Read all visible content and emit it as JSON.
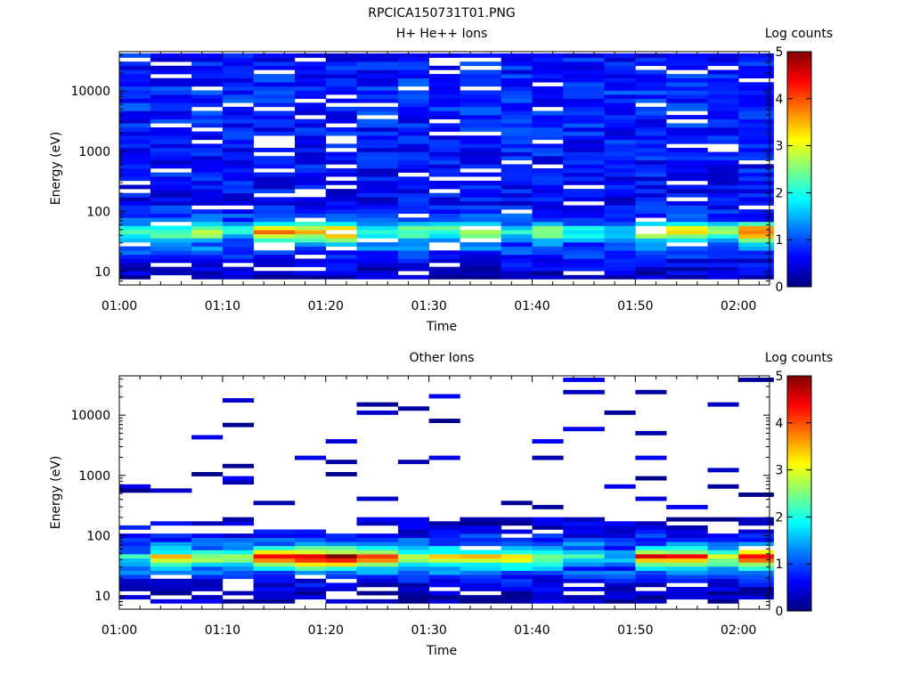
{
  "figure": {
    "title": "RPCICA150731T01.PNG"
  },
  "chart_data": [
    {
      "type": "heatmap",
      "title": "H+ He++ Ions",
      "xlabel": "Time",
      "ylabel": "Energy (eV)",
      "x_ticks": [
        "01:00",
        "01:10",
        "01:20",
        "01:30",
        "01:40",
        "01:50",
        "02:00"
      ],
      "x_range": [
        "01:00",
        "02:03"
      ],
      "y_scale": "log",
      "y_ticks": [
        "10",
        "100",
        "1000",
        "10000"
      ],
      "y_range": [
        6,
        45000
      ],
      "grid": false,
      "colorbar": {
        "label": "Log counts",
        "range": [
          0,
          5
        ],
        "ticks": [
          "0",
          "1",
          "2",
          "3",
          "4",
          "5"
        ]
      },
      "time_columns": [
        "01:00",
        "01:03",
        "01:07",
        "01:10",
        "01:13",
        "01:17",
        "01:20",
        "01:23",
        "01:27",
        "01:30",
        "01:33",
        "01:37",
        "01:40",
        "01:43",
        "01:47",
        "01:50",
        "01:53",
        "01:57",
        "02:00"
      ],
      "energy_profile": [
        {
          "energy": 8,
          "log_counts": 0.3
        },
        {
          "energy": 10,
          "log_counts": 0.4
        },
        {
          "energy": 15,
          "log_counts": 0.6
        },
        {
          "energy": 22,
          "log_counts": 0.9
        },
        {
          "energy": 32,
          "log_counts": 1.8
        },
        {
          "energy": 38,
          "log_counts": 2.8
        },
        {
          "energy": 45,
          "log_counts": 3.3
        },
        {
          "energy": 55,
          "log_counts": 3.0
        },
        {
          "energy": 70,
          "log_counts": 1.0
        },
        {
          "energy": 150,
          "log_counts": 0.6
        },
        {
          "energy": 1000,
          "log_counts": 0.7
        },
        {
          "energy": 10000,
          "log_counts": 0.8
        },
        {
          "energy": 40000,
          "log_counts": 0.7
        }
      ],
      "column_peak_log_counts": [
        2.0,
        2.3,
        2.6,
        1.8,
        3.6,
        3.3,
        3.7,
        2.0,
        2.4,
        2.3,
        2.7,
        2.0,
        2.7,
        2.0,
        1.6,
        2.8,
        3.2,
        2.6,
        3.8
      ]
    },
    {
      "type": "heatmap",
      "title": "Other Ions",
      "xlabel": "Time",
      "ylabel": "Energy (eV)",
      "x_ticks": [
        "01:00",
        "01:10",
        "01:20",
        "01:30",
        "01:40",
        "01:50",
        "02:00"
      ],
      "x_range": [
        "01:00",
        "02:03"
      ],
      "y_scale": "log",
      "y_ticks": [
        "10",
        "100",
        "1000",
        "10000"
      ],
      "y_range": [
        6,
        45000
      ],
      "grid": false,
      "colorbar": {
        "label": "Log counts",
        "range": [
          0,
          5
        ],
        "ticks": [
          "0",
          "1",
          "2",
          "3",
          "4",
          "5"
        ]
      },
      "time_columns": [
        "01:00",
        "01:03",
        "01:07",
        "01:10",
        "01:13",
        "01:17",
        "01:20",
        "01:23",
        "01:27",
        "01:30",
        "01:33",
        "01:37",
        "01:40",
        "01:43",
        "01:47",
        "01:50",
        "01:53",
        "01:57",
        "02:00"
      ],
      "energy_profile": [
        {
          "energy": 8,
          "log_counts": 0.3
        },
        {
          "energy": 13,
          "log_counts": 0.4
        },
        {
          "energy": 20,
          "log_counts": 0.7
        },
        {
          "energy": 28,
          "log_counts": 1.6
        },
        {
          "energy": 33,
          "log_counts": 2.2
        },
        {
          "energy": 38,
          "log_counts": 2.9
        },
        {
          "energy": 45,
          "log_counts": 3.6
        },
        {
          "energy": 55,
          "log_counts": 2.0
        },
        {
          "energy": 70,
          "log_counts": 1.2
        },
        {
          "energy": 110,
          "log_counts": 0.6
        },
        {
          "energy": 180,
          "log_counts": 0.3
        }
      ],
      "column_peak_log_counts": [
        1.8,
        3.0,
        2.6,
        2.4,
        4.2,
        4.4,
        4.4,
        3.8,
        2.6,
        3.2,
        3.0,
        3.2,
        2.6,
        2.0,
        1.6,
        4.0,
        3.8,
        3.0,
        4.3
      ]
    }
  ]
}
